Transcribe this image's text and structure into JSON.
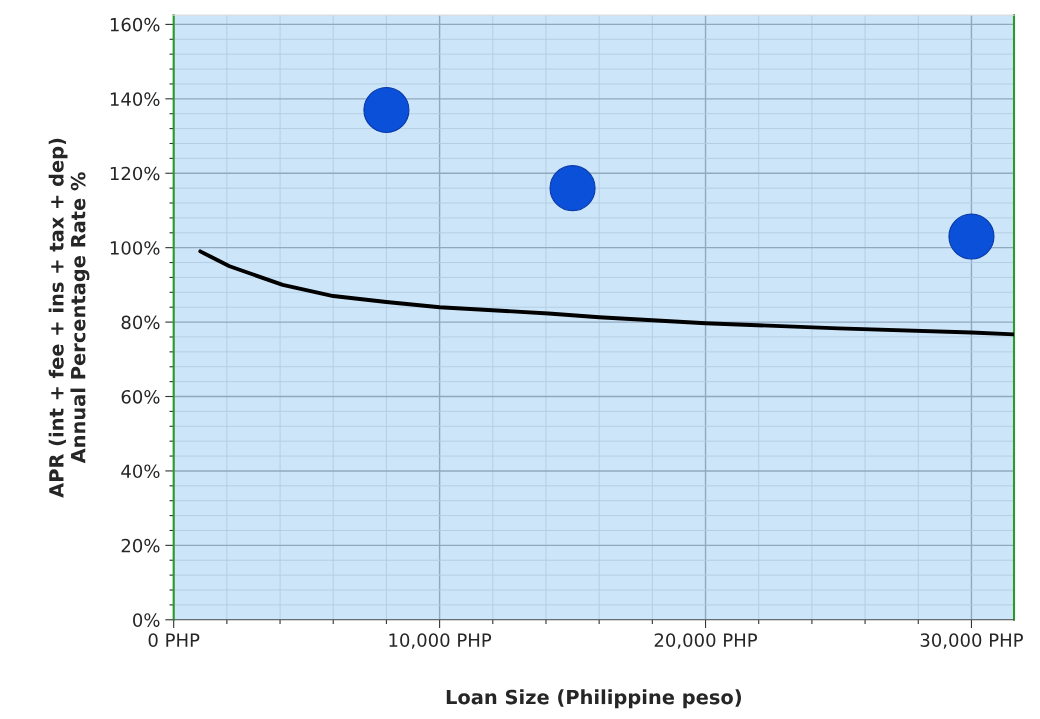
{
  "chart_data": {
    "type": "scatter",
    "xlabel": "Loan Size (Philippine peso)",
    "ylabel": "APR (int + fee + ins + tax + dep)\nAnnual Percentage Rate %",
    "xlim": [
      0,
      31600
    ],
    "ylim": [
      0,
      162.5
    ],
    "xticks": [
      {
        "value": 0,
        "label": "0 PHP"
      },
      {
        "value": 2000,
        "label": null
      },
      {
        "value": 4000,
        "label": null
      },
      {
        "value": 6000,
        "label": null
      },
      {
        "value": 8000,
        "label": null
      },
      {
        "value": 10000,
        "label": "10,000 PHP"
      },
      {
        "value": 12000,
        "label": null
      },
      {
        "value": 14000,
        "label": null
      },
      {
        "value": 16000,
        "label": null
      },
      {
        "value": 18000,
        "label": null
      },
      {
        "value": 20000,
        "label": "20,000 PHP"
      },
      {
        "value": 22000,
        "label": null
      },
      {
        "value": 24000,
        "label": null
      },
      {
        "value": 26000,
        "label": null
      },
      {
        "value": 28000,
        "label": null
      },
      {
        "value": 30000,
        "label": "30,000 PHP"
      }
    ],
    "yticks": [
      {
        "value": 0,
        "label": "0%"
      },
      {
        "value": 4,
        "label": null
      },
      {
        "value": 8,
        "label": null
      },
      {
        "value": 12,
        "label": null
      },
      {
        "value": 16,
        "label": null
      },
      {
        "value": 20,
        "label": "20%"
      },
      {
        "value": 24,
        "label": null
      },
      {
        "value": 28,
        "label": null
      },
      {
        "value": 32,
        "label": null
      },
      {
        "value": 36,
        "label": null
      },
      {
        "value": 40,
        "label": "40%"
      },
      {
        "value": 44,
        "label": null
      },
      {
        "value": 48,
        "label": null
      },
      {
        "value": 52,
        "label": null
      },
      {
        "value": 56,
        "label": null
      },
      {
        "value": 60,
        "label": "60%"
      },
      {
        "value": 64,
        "label": null
      },
      {
        "value": 68,
        "label": null
      },
      {
        "value": 72,
        "label": null
      },
      {
        "value": 76,
        "label": null
      },
      {
        "value": 80,
        "label": "80%"
      },
      {
        "value": 84,
        "label": null
      },
      {
        "value": 88,
        "label": null
      },
      {
        "value": 92,
        "label": null
      },
      {
        "value": 96,
        "label": null
      },
      {
        "value": 100,
        "label": "100%"
      },
      {
        "value": 104,
        "label": null
      },
      {
        "value": 108,
        "label": null
      },
      {
        "value": 112,
        "label": null
      },
      {
        "value": 116,
        "label": null
      },
      {
        "value": 120,
        "label": "120%"
      },
      {
        "value": 124,
        "label": null
      },
      {
        "value": 128,
        "label": null
      },
      {
        "value": 132,
        "label": null
      },
      {
        "value": 136,
        "label": null
      },
      {
        "value": 140,
        "label": "140%"
      },
      {
        "value": 144,
        "label": null
      },
      {
        "value": 148,
        "label": null
      },
      {
        "value": 152,
        "label": null
      },
      {
        "value": 156,
        "label": null
      },
      {
        "value": 160,
        "label": "160%"
      }
    ],
    "grid": true,
    "marker": "circle",
    "series": [
      {
        "color": "#0a50d8",
        "x": [
          8000,
          15000,
          30000
        ],
        "values": [
          137,
          116,
          103
        ]
      },
      {
        "type": "line",
        "color": "#000000",
        "marker": "none",
        "x": [
          1000,
          2100,
          4100,
          6000,
          8000,
          10000,
          14100,
          16000,
          20000,
          25000,
          30000,
          31600
        ],
        "values": [
          99,
          95,
          90,
          87,
          85.4,
          84,
          82.3,
          81.3,
          79.7,
          78.3,
          77.2,
          76.7
        ]
      }
    ]
  }
}
